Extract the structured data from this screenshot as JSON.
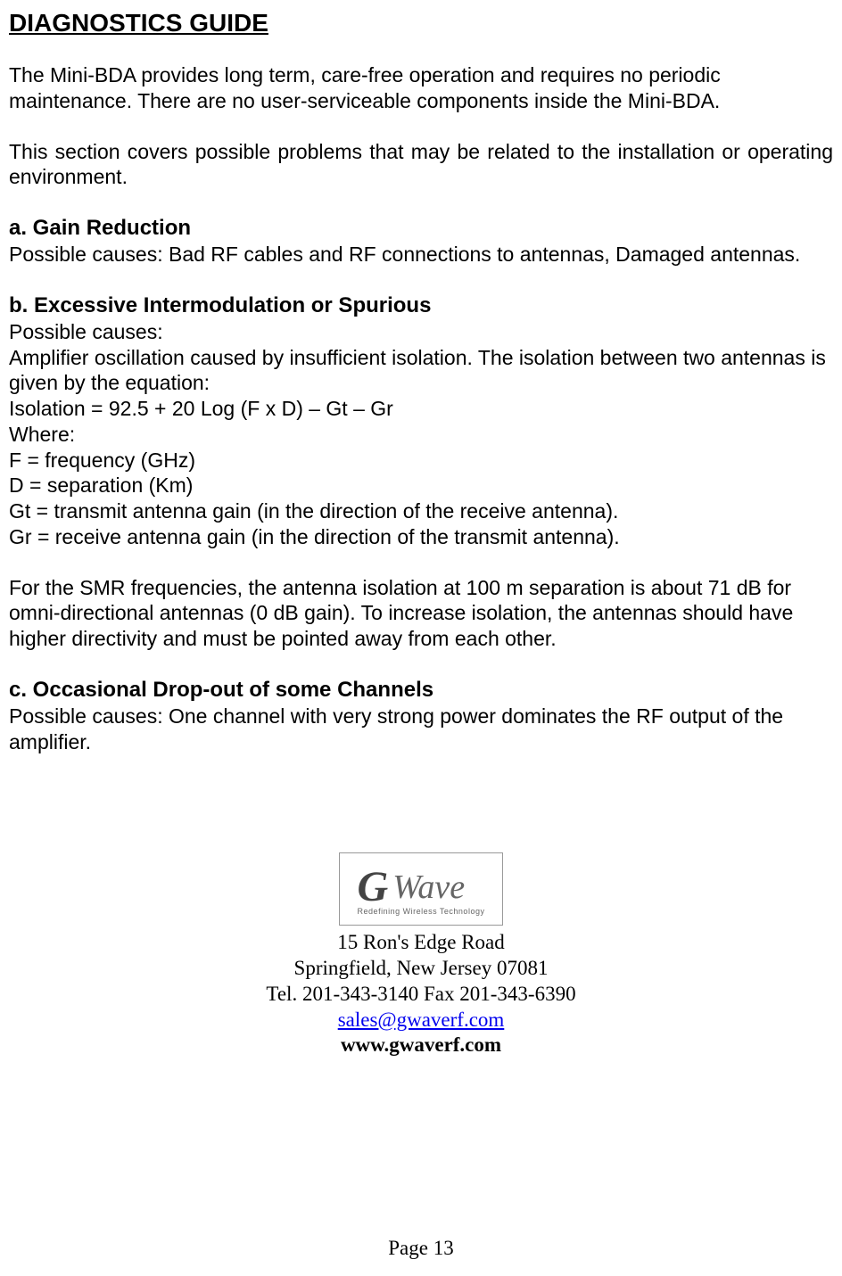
{
  "title": "DIAGNOSTICS GUIDE",
  "intro1": "The Mini-BDA provides long term, care-free operation and requires no periodic maintenance. There are no user-serviceable components inside the Mini-BDA.",
  "intro2": "This section covers possible problems that may be related to the installation or operating environment.",
  "sectionA": {
    "heading": "a. Gain Reduction",
    "body": "Possible causes: Bad RF cables and RF connections to antennas, Damaged antennas."
  },
  "sectionB": {
    "heading": "b. Excessive Intermodulation or Spurious",
    "line1": "Possible causes:",
    "line2": "Amplifier oscillation caused by insufficient isolation. The isolation between two antennas is given by the equation:",
    "line3": "Isolation = 92.5 + 20 Log (F x D) – Gt – Gr",
    "line4": "Where:",
    "line5": "F = frequency (GHz)",
    "line6": "D = separation (Km)",
    "line7": "Gt = transmit antenna gain (in the direction of the receive antenna).",
    "line8": "Gr = receive antenna gain (in the direction of the transmit antenna).",
    "para2": "For the SMR frequencies, the antenna isolation at 100 m separation is about 71 dB for omni-directional antennas (0 dB gain). To increase isolation, the antennas should have higher directivity and must be pointed away from each other."
  },
  "sectionC": {
    "heading": "c. Occasional Drop-out of some Channels",
    "body": "Possible causes: One channel with very strong power dominates the RF output of the amplifier."
  },
  "logo": {
    "g": "G",
    "wave": "Wave",
    "tagline": "Redefining Wireless Technology"
  },
  "contact": {
    "address1": "15 Ron's Edge Road",
    "address2": "Springfield, New Jersey 07081",
    "phone": "Tel. 201-343-3140   Fax 201-343-6390",
    "email": "sales@gwaverf.com",
    "website": "www.gwaverf.com"
  },
  "pageNum": "Page 13"
}
